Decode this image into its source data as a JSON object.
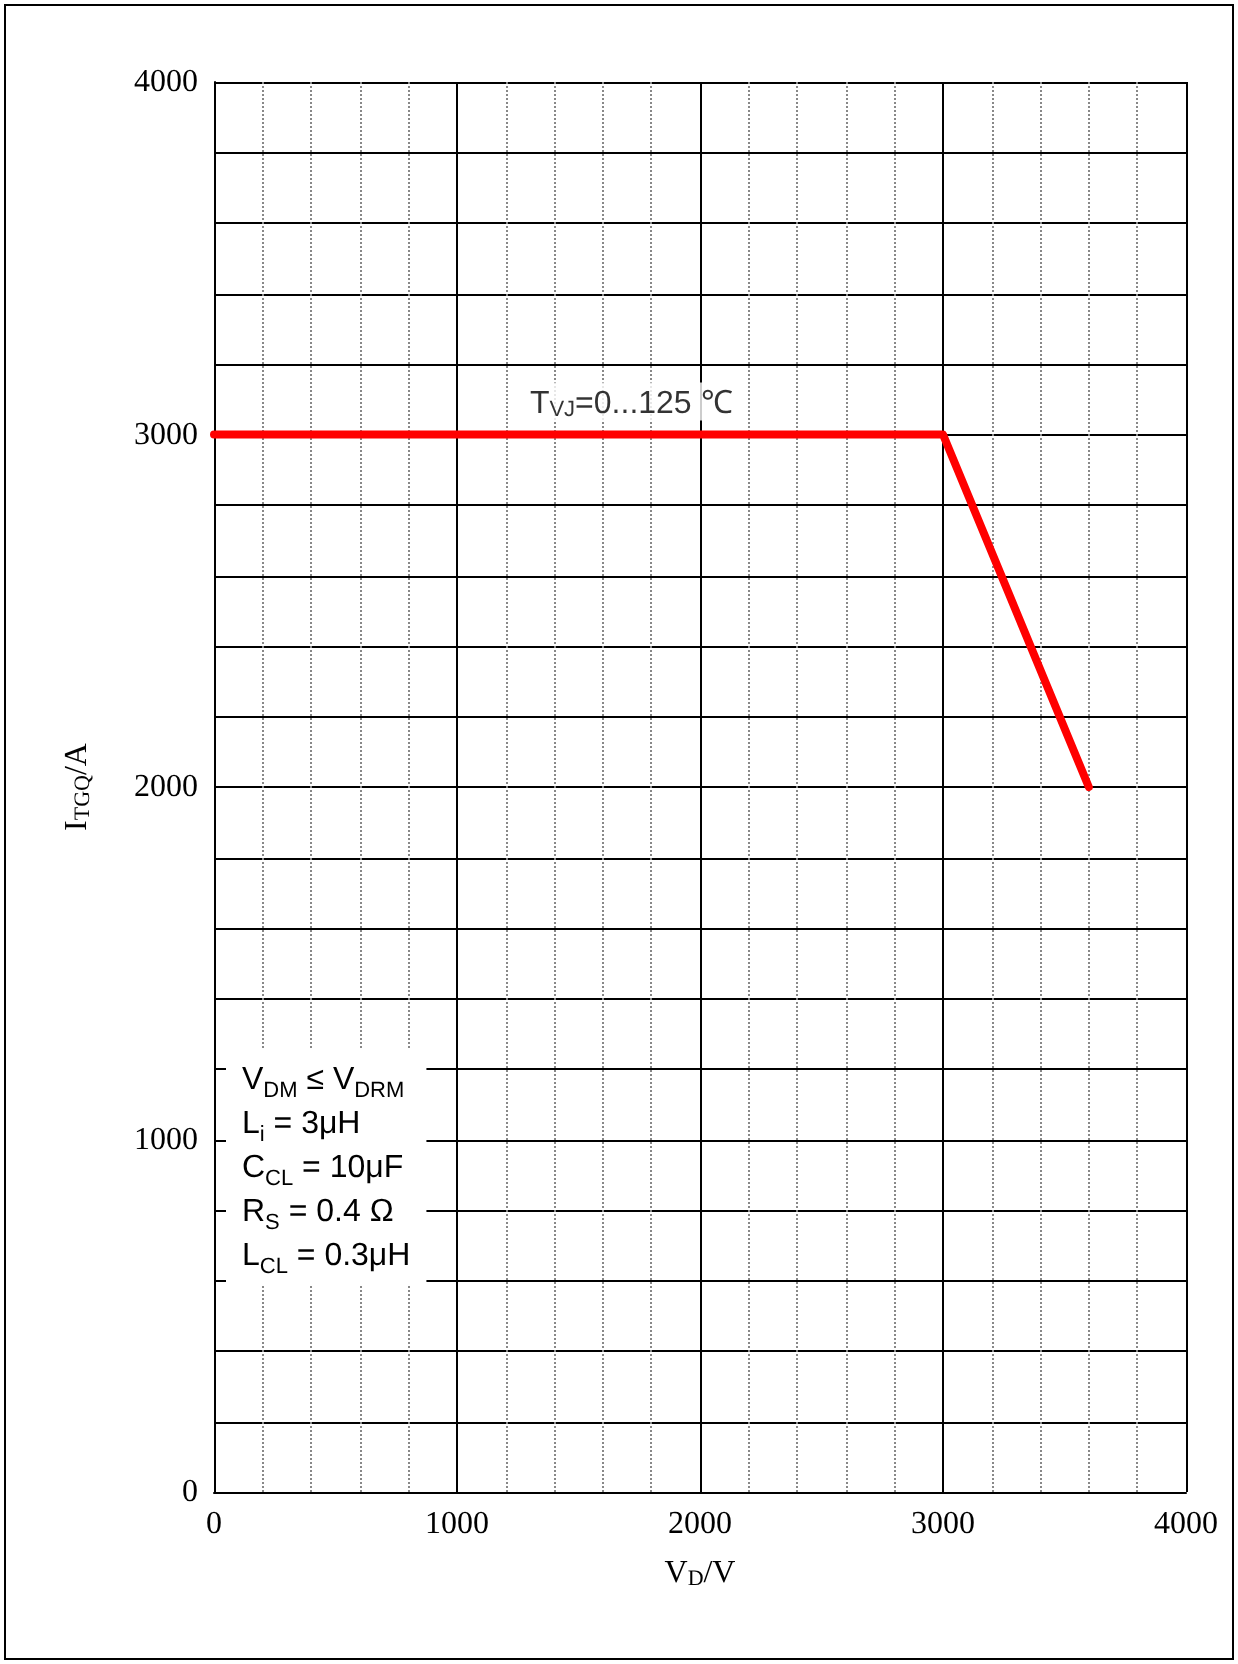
{
  "chart_data": {
    "type": "line",
    "xlabel": "V$_{D}$/V",
    "ylabel": "I$_{TGQ}$/A",
    "x": [
      0,
      3000,
      3600
    ],
    "series": [
      {
        "color": "#ff0000",
        "values": [
          3000,
          3000,
          2000
        ]
      }
    ],
    "xlim": [
      0,
      4000
    ],
    "xticks": [
      0,
      1000,
      2000,
      3000,
      4000
    ],
    "ylim": [
      0,
      4000
    ],
    "yticks": [
      0,
      1000,
      2000,
      3000,
      4000
    ],
    "grid": true,
    "marker": "none",
    "line_style": "solid",
    "annotations": [
      {
        "text": "T$_{VJ}$=0...125 ℃",
        "x": 1300,
        "y": 3000
      },
      "V$_{DM}$ ≤ V$_{DRM}$",
      "L$_{i}$ = 3μH",
      "C$_{CL}$ = 10μF",
      "R$_{S}$ = 0.4 Ω",
      "L$_{CL}$ = 0.3μH"
    ]
  }
}
